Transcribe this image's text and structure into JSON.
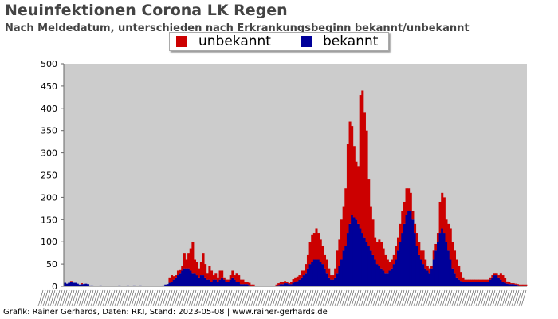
{
  "chart_data": {
    "type": "bar",
    "stacked": true,
    "title": "Neuinfektionen Corona LK Regen",
    "subtitle": "Nach Meldedatum, unterschieden nach Erkrankungsbeginn bekannt/unbekannt",
    "ylim": [
      0,
      500
    ],
    "yticks": [
      0,
      50,
      100,
      150,
      200,
      250,
      300,
      350,
      400,
      450,
      500
    ],
    "grid": false,
    "legend_position": "top-center",
    "series": [
      {
        "name": "unbekannt",
        "color": "#cc0000",
        "values": [
          0,
          0,
          0,
          2,
          0,
          0,
          0,
          0,
          2,
          0,
          0,
          0,
          0,
          0,
          0,
          0,
          0,
          0,
          0,
          0,
          0,
          0,
          0,
          0,
          0,
          0,
          0,
          0,
          0,
          0,
          0,
          0,
          0,
          0,
          0,
          0,
          0,
          0,
          0,
          0,
          0,
          0,
          0,
          0,
          0,
          0,
          0,
          0,
          0,
          0,
          12,
          15,
          8,
          5,
          10,
          8,
          10,
          35,
          20,
          35,
          50,
          70,
          30,
          30,
          20,
          30,
          50,
          30,
          15,
          30,
          25,
          10,
          15,
          10,
          20,
          15,
          5,
          5,
          5,
          10,
          15,
          10,
          20,
          15,
          10,
          10,
          5,
          5,
          5,
          2,
          2,
          0,
          0,
          0,
          0,
          0,
          0,
          0,
          0,
          0,
          0,
          2,
          4,
          5,
          5,
          5,
          3,
          2,
          5,
          8,
          10,
          10,
          10,
          15,
          10,
          20,
          30,
          50,
          60,
          60,
          70,
          60,
          50,
          40,
          30,
          30,
          20,
          10,
          10,
          20,
          50,
          60,
          90,
          100,
          130,
          200,
          230,
          200,
          160,
          130,
          130,
          300,
          320,
          280,
          250,
          150,
          100,
          80,
          50,
          50,
          60,
          60,
          50,
          40,
          30,
          20,
          20,
          20,
          30,
          30,
          40,
          50,
          50,
          60,
          50,
          40,
          20,
          20,
          30,
          30,
          20,
          30,
          20,
          10,
          10,
          5,
          20,
          15,
          20,
          70,
          80,
          80,
          50,
          60,
          70,
          60,
          50,
          40,
          30,
          20,
          10,
          5,
          5,
          5,
          5,
          5,
          5,
          5,
          5,
          5,
          5,
          5,
          5,
          5,
          5,
          5,
          5,
          5,
          15,
          15,
          10,
          5,
          5,
          2,
          2,
          2,
          2,
          2,
          2,
          2,
          2
        ]
      },
      {
        "name": "bekannt",
        "color": "#000099",
        "values": [
          8,
          6,
          8,
          10,
          8,
          8,
          6,
          4,
          5,
          5,
          6,
          5,
          2,
          2,
          0,
          0,
          0,
          2,
          0,
          0,
          0,
          0,
          0,
          0,
          0,
          0,
          2,
          0,
          0,
          0,
          2,
          0,
          0,
          2,
          0,
          0,
          2,
          0,
          0,
          0,
          0,
          0,
          0,
          0,
          0,
          0,
          0,
          2,
          4,
          5,
          8,
          10,
          15,
          20,
          25,
          30,
          35,
          40,
          40,
          40,
          35,
          30,
          30,
          25,
          20,
          25,
          25,
          20,
          15,
          15,
          10,
          15,
          15,
          10,
          15,
          20,
          15,
          10,
          10,
          15,
          20,
          15,
          10,
          10,
          5,
          5,
          5,
          5,
          3,
          2,
          2,
          0,
          0,
          0,
          0,
          0,
          0,
          0,
          0,
          0,
          0,
          2,
          3,
          5,
          5,
          7,
          7,
          5,
          5,
          8,
          10,
          12,
          15,
          20,
          25,
          30,
          40,
          50,
          55,
          60,
          60,
          60,
          55,
          50,
          40,
          30,
          20,
          15,
          15,
          20,
          30,
          45,
          60,
          80,
          90,
          120,
          140,
          160,
          155,
          150,
          140,
          130,
          120,
          110,
          100,
          90,
          80,
          70,
          60,
          50,
          45,
          40,
          35,
          30,
          30,
          35,
          40,
          50,
          60,
          80,
          100,
          120,
          140,
          160,
          170,
          170,
          150,
          120,
          90,
          70,
          60,
          50,
          40,
          35,
          30,
          40,
          60,
          80,
          100,
          120,
          130,
          120,
          100,
          80,
          60,
          40,
          30,
          20,
          15,
          12,
          10,
          10,
          10,
          10,
          10,
          10,
          10,
          10,
          10,
          10,
          10,
          10,
          10,
          15,
          20,
          25,
          25,
          20,
          15,
          10,
          8,
          6,
          5,
          5,
          5,
          4,
          3,
          2,
          2,
          2,
          2
        ]
      }
    ]
  },
  "legend": {
    "unbekannt_label": "unbekannt",
    "bekannt_label": "bekannt"
  },
  "footer": "Grafik: Rainer Gerhards, Daten: RKI, Stand: 2023-05-08 | www.rainer-gerhards.de"
}
